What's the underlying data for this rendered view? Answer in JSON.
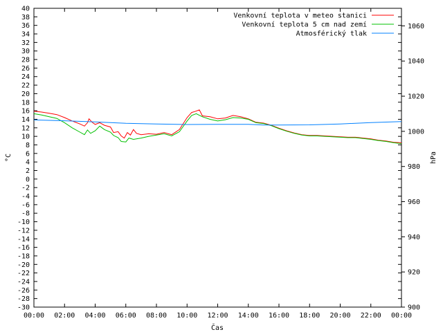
{
  "chart_data": {
    "type": "line",
    "xlabel": "Čas",
    "ylabel": "°C",
    "y2label": "hPa",
    "xlim": [
      0,
      24
    ],
    "ylim": [
      -30,
      40
    ],
    "y2lim": [
      900,
      1070
    ],
    "x_ticks": [
      "00:00",
      "02:00",
      "04:00",
      "06:00",
      "08:00",
      "10:00",
      "12:00",
      "14:00",
      "16:00",
      "18:00",
      "20:00",
      "22:00",
      "00:00"
    ],
    "y_ticks": [
      "-30",
      "-28",
      "-26",
      "-24",
      "-22",
      "-20",
      "-18",
      "-16",
      "-14",
      "-12",
      "-10",
      "-8",
      "-6",
      "-4",
      "-2",
      "0",
      "2",
      "4",
      "6",
      "8",
      "10",
      "12",
      "14",
      "16",
      "18",
      "20",
      "22",
      "24",
      "26",
      "28",
      "30",
      "32",
      "34",
      "36",
      "38",
      "40"
    ],
    "y2_ticks": [
      "900",
      "920",
      "940",
      "960",
      "980",
      "1000",
      "1020",
      "1040",
      "1060"
    ],
    "legend_position": "top-right",
    "grid": false,
    "series": [
      {
        "name": "Venkovní teplota v meteo stanici",
        "color": "#ff0000",
        "axis": "left",
        "points": [
          [
            0,
            15.9
          ],
          [
            0.5,
            15.7
          ],
          [
            1,
            15.4
          ],
          [
            1.5,
            15.1
          ],
          [
            2,
            14.4
          ],
          [
            2.5,
            13.6
          ],
          [
            3,
            12.9
          ],
          [
            3.3,
            12.4
          ],
          [
            3.5,
            13.2
          ],
          [
            3.6,
            14.1
          ],
          [
            3.8,
            13.3
          ],
          [
            4,
            12.8
          ],
          [
            4.3,
            13.2
          ],
          [
            4.6,
            12.6
          ],
          [
            5,
            12.2
          ],
          [
            5.2,
            10.9
          ],
          [
            5.5,
            11.1
          ],
          [
            5.7,
            10.1
          ],
          [
            5.9,
            9.6
          ],
          [
            6.1,
            10.9
          ],
          [
            6.3,
            10.3
          ],
          [
            6.5,
            11.6
          ],
          [
            6.7,
            10.7
          ],
          [
            7,
            10.4
          ],
          [
            7.5,
            10.6
          ],
          [
            8,
            10.5
          ],
          [
            8.5,
            10.9
          ],
          [
            9,
            10.4
          ],
          [
            9.5,
            11.6
          ],
          [
            10,
            14.4
          ],
          [
            10.3,
            15.6
          ],
          [
            10.5,
            15.8
          ],
          [
            10.8,
            16.2
          ],
          [
            11,
            14.8
          ],
          [
            11.5,
            14.6
          ],
          [
            12,
            14.1
          ],
          [
            12.5,
            14.3
          ],
          [
            13,
            14.9
          ],
          [
            13.5,
            14.6
          ],
          [
            14,
            14.1
          ],
          [
            14.5,
            13.3
          ],
          [
            15,
            13.1
          ],
          [
            15.5,
            12.6
          ],
          [
            16,
            11.9
          ],
          [
            16.5,
            11.3
          ],
          [
            17,
            10.8
          ],
          [
            17.5,
            10.4
          ],
          [
            18,
            10.2
          ],
          [
            18.5,
            10.2
          ],
          [
            19,
            10.1
          ],
          [
            19.5,
            10.0
          ],
          [
            20,
            9.9
          ],
          [
            20.5,
            9.8
          ],
          [
            21,
            9.8
          ],
          [
            21.5,
            9.6
          ],
          [
            22,
            9.4
          ],
          [
            22.5,
            9.1
          ],
          [
            23,
            8.9
          ],
          [
            23.5,
            8.6
          ],
          [
            24,
            8.5
          ]
        ]
      },
      {
        "name": "Venkovní teplota 5 cm nad zemí",
        "color": "#00c000",
        "axis": "left",
        "points": [
          [
            0,
            15.3
          ],
          [
            0.5,
            15.0
          ],
          [
            1,
            14.6
          ],
          [
            1.5,
            14.2
          ],
          [
            2,
            13.2
          ],
          [
            2.5,
            12.0
          ],
          [
            3,
            11.0
          ],
          [
            3.3,
            10.4
          ],
          [
            3.5,
            11.5
          ],
          [
            3.7,
            10.7
          ],
          [
            4,
            11.3
          ],
          [
            4.3,
            12.4
          ],
          [
            4.6,
            11.6
          ],
          [
            5,
            11.0
          ],
          [
            5.2,
            10.2
          ],
          [
            5.5,
            9.7
          ],
          [
            5.7,
            8.8
          ],
          [
            6,
            8.7
          ],
          [
            6.2,
            9.6
          ],
          [
            6.5,
            9.3
          ],
          [
            7,
            9.6
          ],
          [
            7.5,
            10.0
          ],
          [
            8,
            10.3
          ],
          [
            8.5,
            10.6
          ],
          [
            9,
            10.1
          ],
          [
            9.5,
            11.1
          ],
          [
            10,
            13.6
          ],
          [
            10.3,
            14.9
          ],
          [
            10.6,
            15.3
          ],
          [
            11,
            14.6
          ],
          [
            11.5,
            14.0
          ],
          [
            12,
            13.6
          ],
          [
            12.5,
            13.9
          ],
          [
            13,
            14.4
          ],
          [
            13.5,
            14.3
          ],
          [
            14,
            14.0
          ],
          [
            14.5,
            13.2
          ],
          [
            15,
            13.0
          ],
          [
            15.5,
            12.5
          ],
          [
            16,
            11.8
          ],
          [
            16.5,
            11.2
          ],
          [
            17,
            10.7
          ],
          [
            17.5,
            10.3
          ],
          [
            18,
            10.1
          ],
          [
            18.5,
            10.1
          ],
          [
            19,
            10.0
          ],
          [
            19.5,
            9.9
          ],
          [
            20,
            9.8
          ],
          [
            20.5,
            9.7
          ],
          [
            21,
            9.7
          ],
          [
            21.5,
            9.5
          ],
          [
            22,
            9.3
          ],
          [
            22.5,
            9.0
          ],
          [
            23,
            8.8
          ],
          [
            23.5,
            8.5
          ],
          [
            24,
            8.3
          ]
        ]
      },
      {
        "name": "Atmosférický tlak",
        "color": "#0080ff",
        "axis": "right",
        "points": [
          [
            0,
            1006.5
          ],
          [
            2,
            1006.0
          ],
          [
            4,
            1005.4
          ],
          [
            6,
            1004.6
          ],
          [
            8,
            1004.2
          ],
          [
            10,
            1003.9
          ],
          [
            12,
            1004.0
          ],
          [
            14,
            1004.0
          ],
          [
            15,
            1003.6
          ],
          [
            16,
            1003.6
          ],
          [
            18,
            1003.7
          ],
          [
            20,
            1004.2
          ],
          [
            22,
            1005.0
          ],
          [
            24,
            1005.6
          ]
        ]
      }
    ]
  }
}
